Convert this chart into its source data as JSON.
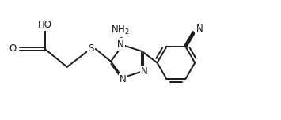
{
  "bg_color": "#ffffff",
  "line_color": "#1a1a1a",
  "text_color": "#1a1a1a",
  "line_width": 1.4,
  "font_size": 8.5,
  "figsize": [
    3.55,
    1.52
  ],
  "dpi": 100,
  "xlim": [
    0,
    10
  ],
  "ylim": [
    0,
    4.3
  ]
}
